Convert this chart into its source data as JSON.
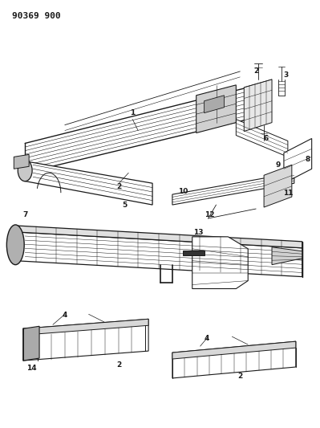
{
  "title": "90369 900",
  "bg_color": "#ffffff",
  "line_color": "#1a1a1a",
  "fig_width": 3.99,
  "fig_height": 5.33,
  "dpi": 100
}
